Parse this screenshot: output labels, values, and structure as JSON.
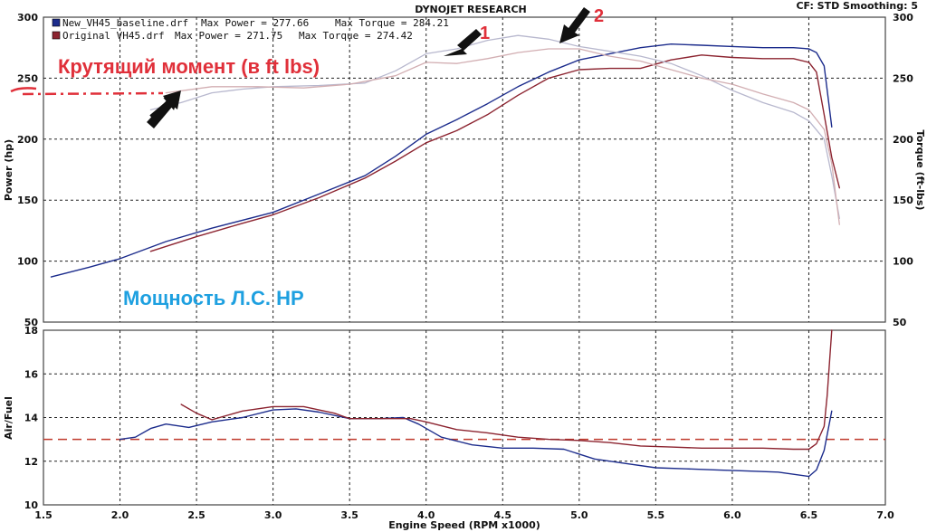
{
  "header": {
    "title": "DYNOJET RESEARCH",
    "settings": "CF: STD  Smoothing: 5"
  },
  "legend": [
    {
      "file": "New_VH45_baseline.drf",
      "power_label": "Max Power = 277.66",
      "torque_label": "Max Torque = 284.21",
      "color": "#1c2c8c"
    },
    {
      "file": "Original VH45.drf",
      "power_label": "Max Power = 271.75",
      "torque_label": "Max Torque = 274.42",
      "color": "#8c2430"
    }
  ],
  "annotations": {
    "torque_text": "Крутящий момент (в ft lbs)",
    "power_text": "Мощность Л.С. HP",
    "marker_1": "1",
    "marker_2": "2",
    "annotation_color_red": "#e0303a",
    "annotation_color_blue": "#1ea0e0"
  },
  "chart_data": [
    {
      "type": "line",
      "name": "power-torque",
      "ylabel": "Power (hp)",
      "y2label": "Torque (ft-lbs)",
      "xlim": [
        1.5,
        7.0
      ],
      "ylim": [
        50,
        300
      ],
      "y2lim": [
        50,
        300
      ],
      "y_ticks": [
        "50",
        "100",
        "150",
        "200",
        "250",
        "300"
      ],
      "grid": true,
      "series": [
        {
          "name": "New_VH45_baseline.drf",
          "measure": "power",
          "color": "#1c2c8c",
          "x": [
            1.55,
            1.8,
            2.0,
            2.3,
            2.6,
            3.0,
            3.3,
            3.6,
            3.8,
            4.0,
            4.2,
            4.4,
            4.6,
            4.8,
            5.0,
            5.2,
            5.4,
            5.6,
            5.8,
            6.0,
            6.2,
            6.4,
            6.5,
            6.55,
            6.6,
            6.65
          ],
          "y": [
            87,
            95,
            102,
            116,
            127,
            140,
            155,
            170,
            186,
            204,
            216,
            229,
            243,
            255,
            265,
            270,
            275,
            278,
            277,
            276,
            275,
            275,
            274,
            271,
            260,
            210
          ]
        },
        {
          "name": "Original VH45.drf",
          "measure": "power",
          "color": "#8c2430",
          "x": [
            2.2,
            2.5,
            2.8,
            3.0,
            3.3,
            3.6,
            3.8,
            4.0,
            4.2,
            4.4,
            4.6,
            4.8,
            5.0,
            5.2,
            5.4,
            5.6,
            5.8,
            6.0,
            6.2,
            6.4,
            6.5,
            6.55,
            6.6,
            6.65,
            6.7
          ],
          "y": [
            108,
            120,
            131,
            138,
            152,
            168,
            182,
            197,
            207,
            220,
            236,
            250,
            257,
            258,
            258,
            265,
            269,
            267,
            266,
            266,
            263,
            255,
            220,
            185,
            160
          ]
        },
        {
          "name": "New_VH45_baseline.drf",
          "measure": "torque",
          "color": "#b8b8ce",
          "x": [
            2.2,
            2.4,
            2.6,
            2.8,
            3.0,
            3.3,
            3.6,
            3.8,
            4.0,
            4.2,
            4.4,
            4.6,
            4.8,
            5.0,
            5.2,
            5.4,
            5.6,
            5.8,
            6.0,
            6.2,
            6.4,
            6.5,
            6.6,
            6.65,
            6.7
          ],
          "y": [
            224,
            230,
            238,
            241,
            243,
            244,
            246,
            256,
            270,
            274,
            281,
            285,
            282,
            276,
            272,
            268,
            262,
            252,
            240,
            230,
            222,
            215,
            200,
            170,
            135
          ]
        },
        {
          "name": "Original VH45.drf",
          "measure": "torque",
          "color": "#d2aeb2",
          "x": [
            2.3,
            2.6,
            2.9,
            3.2,
            3.5,
            3.8,
            4.0,
            4.2,
            4.4,
            4.6,
            4.8,
            5.0,
            5.2,
            5.4,
            5.6,
            5.8,
            6.0,
            6.2,
            6.4,
            6.5,
            6.6,
            6.65,
            6.7
          ],
          "y": [
            238,
            243,
            243,
            242,
            245,
            252,
            263,
            262,
            266,
            271,
            274,
            274,
            268,
            264,
            257,
            250,
            245,
            237,
            230,
            224,
            208,
            180,
            130
          ]
        }
      ]
    },
    {
      "type": "line",
      "name": "air-fuel",
      "xlabel": "Engine Speed (RPM x1000)",
      "ylabel": "Air/Fuel",
      "xlim": [
        1.5,
        7.0
      ],
      "ylim": [
        10,
        18
      ],
      "x_ticks": [
        "1.5",
        "2.0",
        "2.5",
        "3.0",
        "3.5",
        "4.0",
        "4.5",
        "5.0",
        "5.5",
        "6.0",
        "6.5",
        "7.0"
      ],
      "y_ticks": [
        "10",
        "12",
        "14",
        "16",
        "18"
      ],
      "grid": true,
      "reference_line": {
        "y": 13.0,
        "color": "#c0392b"
      },
      "series": [
        {
          "name": "New_VH45_baseline.drf",
          "measure": "air-fuel",
          "color": "#1c2c8c",
          "x": [
            2.0,
            2.1,
            2.2,
            2.3,
            2.45,
            2.6,
            2.8,
            3.0,
            3.15,
            3.3,
            3.5,
            3.7,
            3.85,
            3.95,
            4.1,
            4.3,
            4.5,
            4.7,
            4.9,
            5.1,
            5.3,
            5.5,
            5.7,
            5.9,
            6.1,
            6.3,
            6.5,
            6.55,
            6.6,
            6.65
          ],
          "y": [
            13.0,
            13.1,
            13.5,
            13.7,
            13.55,
            13.8,
            14.0,
            14.35,
            14.4,
            14.25,
            13.95,
            13.95,
            14.0,
            13.7,
            13.1,
            12.75,
            12.6,
            12.6,
            12.55,
            12.1,
            11.9,
            11.7,
            11.65,
            11.6,
            11.55,
            11.5,
            11.3,
            11.6,
            12.5,
            14.3
          ]
        },
        {
          "name": "Original VH45.drf",
          "measure": "air-fuel",
          "color": "#8c2430",
          "x": [
            2.4,
            2.5,
            2.6,
            2.8,
            3.0,
            3.2,
            3.4,
            3.5,
            3.7,
            3.9,
            4.0,
            4.2,
            4.4,
            4.6,
            4.8,
            5.0,
            5.2,
            5.4,
            5.6,
            5.8,
            6.0,
            6.2,
            6.4,
            6.5,
            6.55,
            6.6,
            6.62,
            6.65
          ],
          "y": [
            14.6,
            14.2,
            13.9,
            14.3,
            14.5,
            14.5,
            14.2,
            13.95,
            13.95,
            13.95,
            13.8,
            13.45,
            13.3,
            13.1,
            13.0,
            12.95,
            12.85,
            12.7,
            12.65,
            12.6,
            12.6,
            12.6,
            12.55,
            12.55,
            12.8,
            13.6,
            15.0,
            18.0
          ]
        }
      ]
    }
  ]
}
